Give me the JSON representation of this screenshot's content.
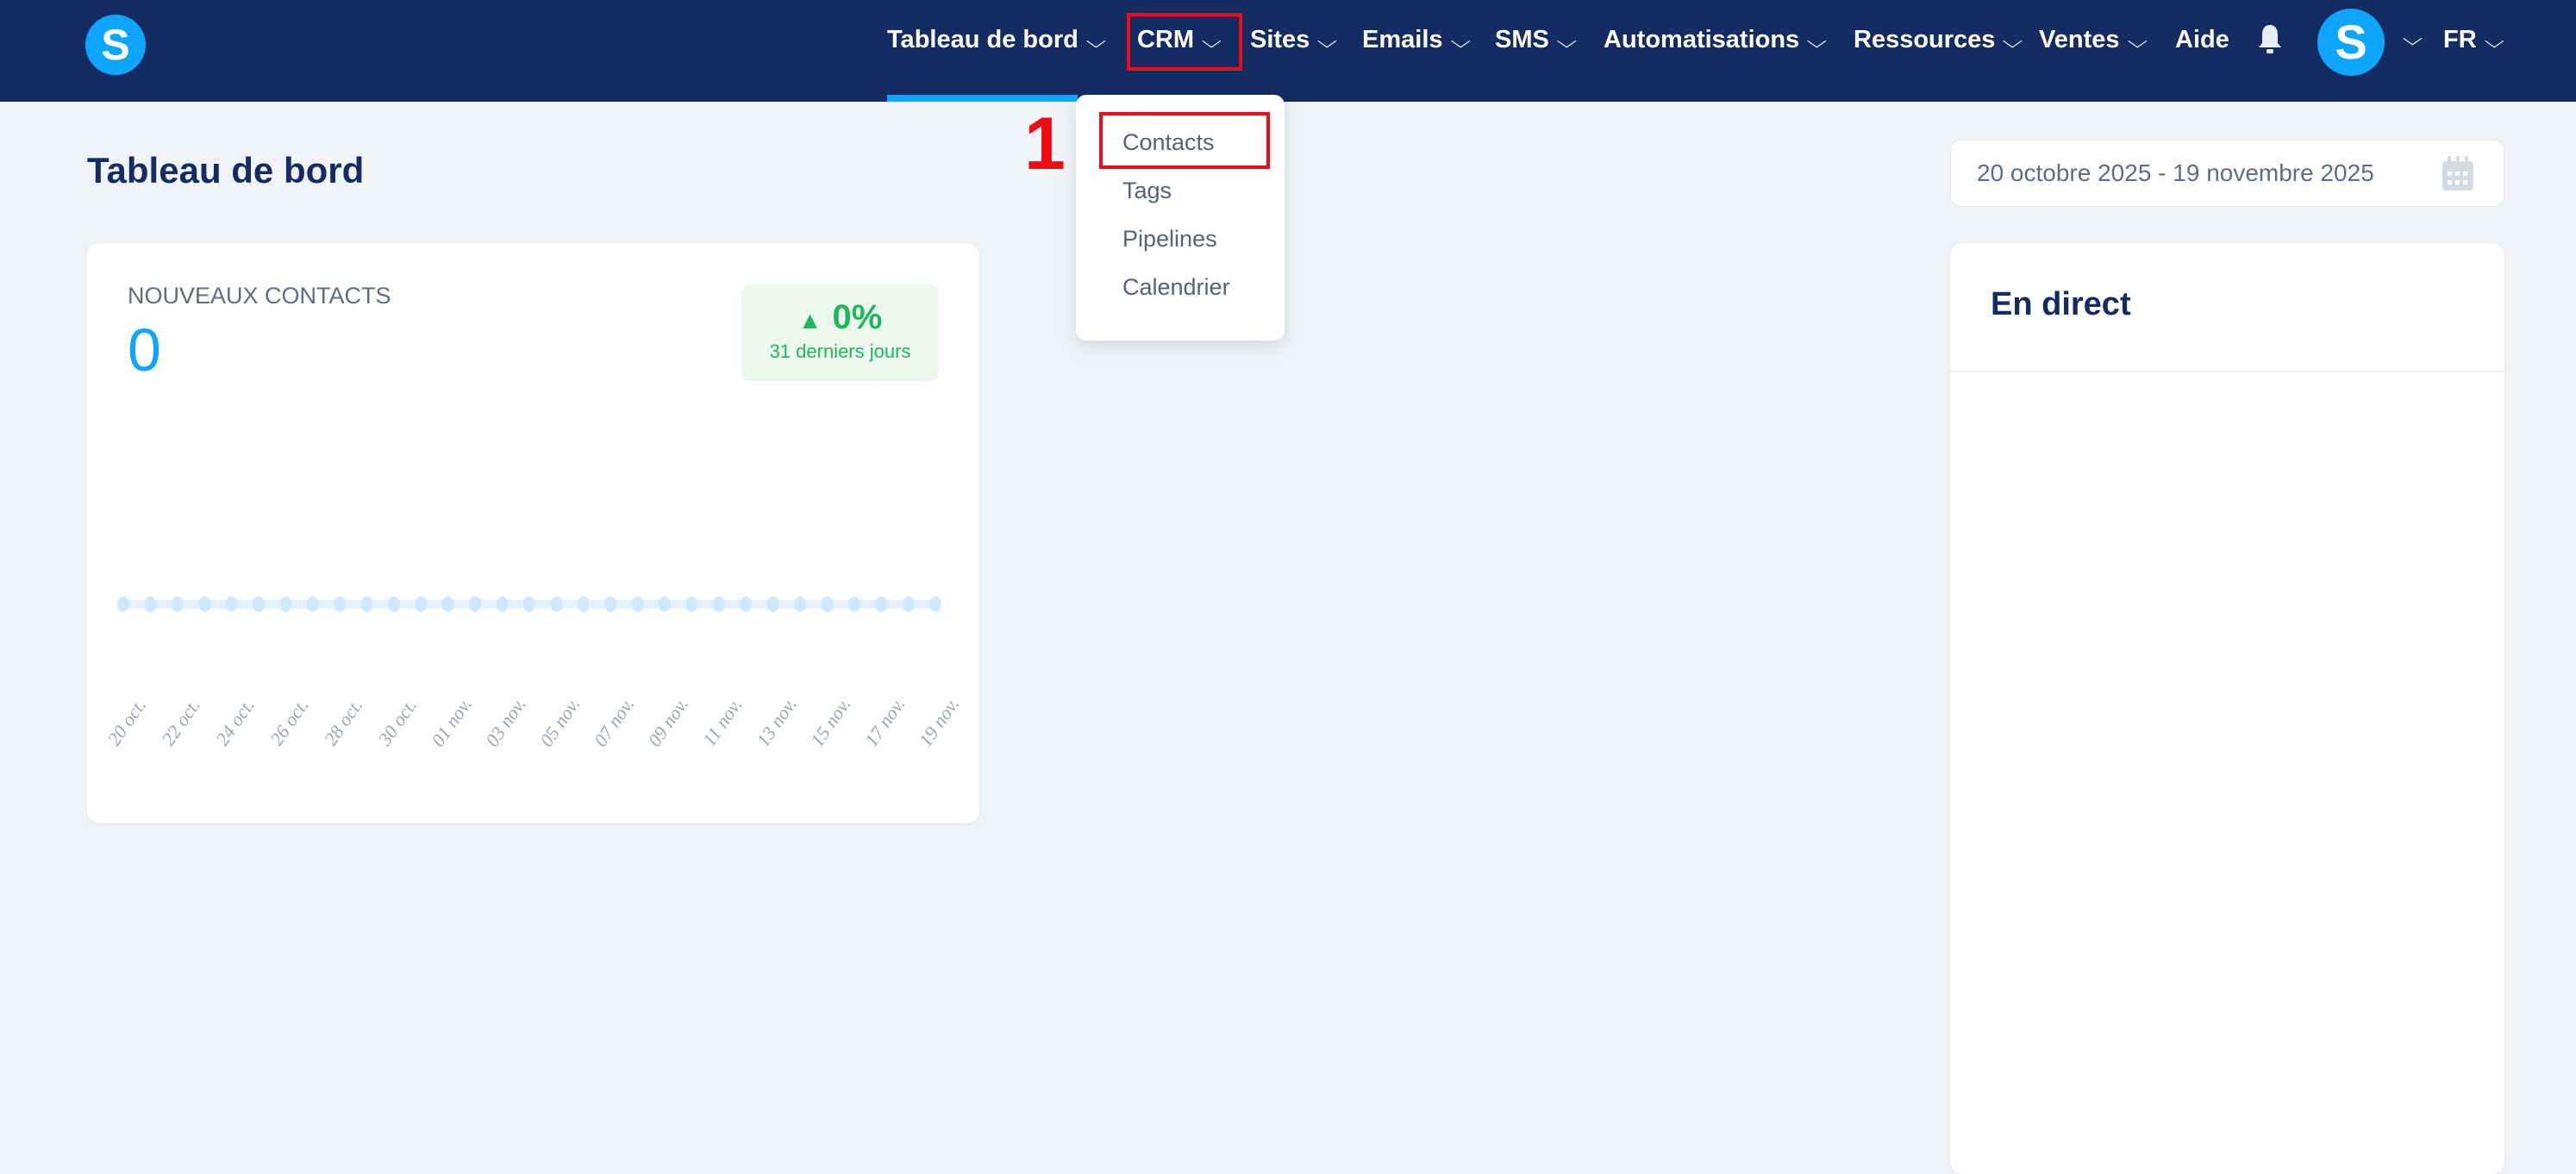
{
  "nav": {
    "logo": "S",
    "items": [
      {
        "label": "Tableau de bord",
        "chevron": true
      },
      {
        "label": "CRM",
        "chevron": true
      },
      {
        "label": "Sites",
        "chevron": true
      },
      {
        "label": "Emails",
        "chevron": true
      },
      {
        "label": "SMS",
        "chevron": true
      },
      {
        "label": "Automatisations",
        "chevron": true
      },
      {
        "label": "Ressources",
        "chevron": true
      },
      {
        "label": "Ventes",
        "chevron": true
      },
      {
        "label": "Aide",
        "chevron": false
      }
    ],
    "chevron": "⌵",
    "bell_icon": "bell-icon",
    "avatar": "S",
    "language": "FR",
    "active_color": "#0ea5ff"
  },
  "crm_menu": {
    "items": [
      "Contacts",
      "Tags",
      "Pipelines",
      "Calendrier"
    ]
  },
  "annotation": {
    "step": "1",
    "color": "#f00a14"
  },
  "page": {
    "title": "Tableau de bord",
    "date_range": "20 octobre 2025 - 19 novembre 2025"
  },
  "contacts_card": {
    "title": "NOUVEAUX CONTACTS",
    "value": "0",
    "change": "0%",
    "period": "31 derniers jours",
    "trend": "up"
  },
  "live": {
    "title": "En direct"
  },
  "chart_data": {
    "type": "line",
    "x": [
      "20 oct.",
      "21 oct.",
      "22 oct.",
      "23 oct.",
      "24 oct.",
      "25 oct.",
      "26 oct.",
      "27 oct.",
      "28 oct.",
      "29 oct.",
      "30 oct.",
      "31 oct.",
      "01 nov.",
      "02 nov.",
      "03 nov.",
      "04 nov.",
      "05 nov.",
      "06 nov.",
      "07 nov.",
      "08 nov.",
      "09 nov.",
      "10 nov.",
      "11 nov.",
      "12 nov.",
      "13 nov.",
      "14 nov.",
      "15 nov.",
      "16 nov.",
      "17 nov.",
      "18 nov.",
      "19 nov."
    ],
    "tick_labels": [
      "20 oct.",
      "22 oct.",
      "24 oct.",
      "26 oct.",
      "28 oct.",
      "30 oct.",
      "01 nov.",
      "03 nov.",
      "05 nov.",
      "07 nov.",
      "09 nov.",
      "11 nov.",
      "13 nov.",
      "15 nov.",
      "17 nov.",
      "19 nov."
    ],
    "values": [
      0,
      0,
      0,
      0,
      0,
      0,
      0,
      0,
      0,
      0,
      0,
      0,
      0,
      0,
      0,
      0,
      0,
      0,
      0,
      0,
      0,
      0,
      0,
      0,
      0,
      0,
      0,
      0,
      0,
      0,
      0
    ],
    "color": "#cfe8ff",
    "grid": false
  }
}
